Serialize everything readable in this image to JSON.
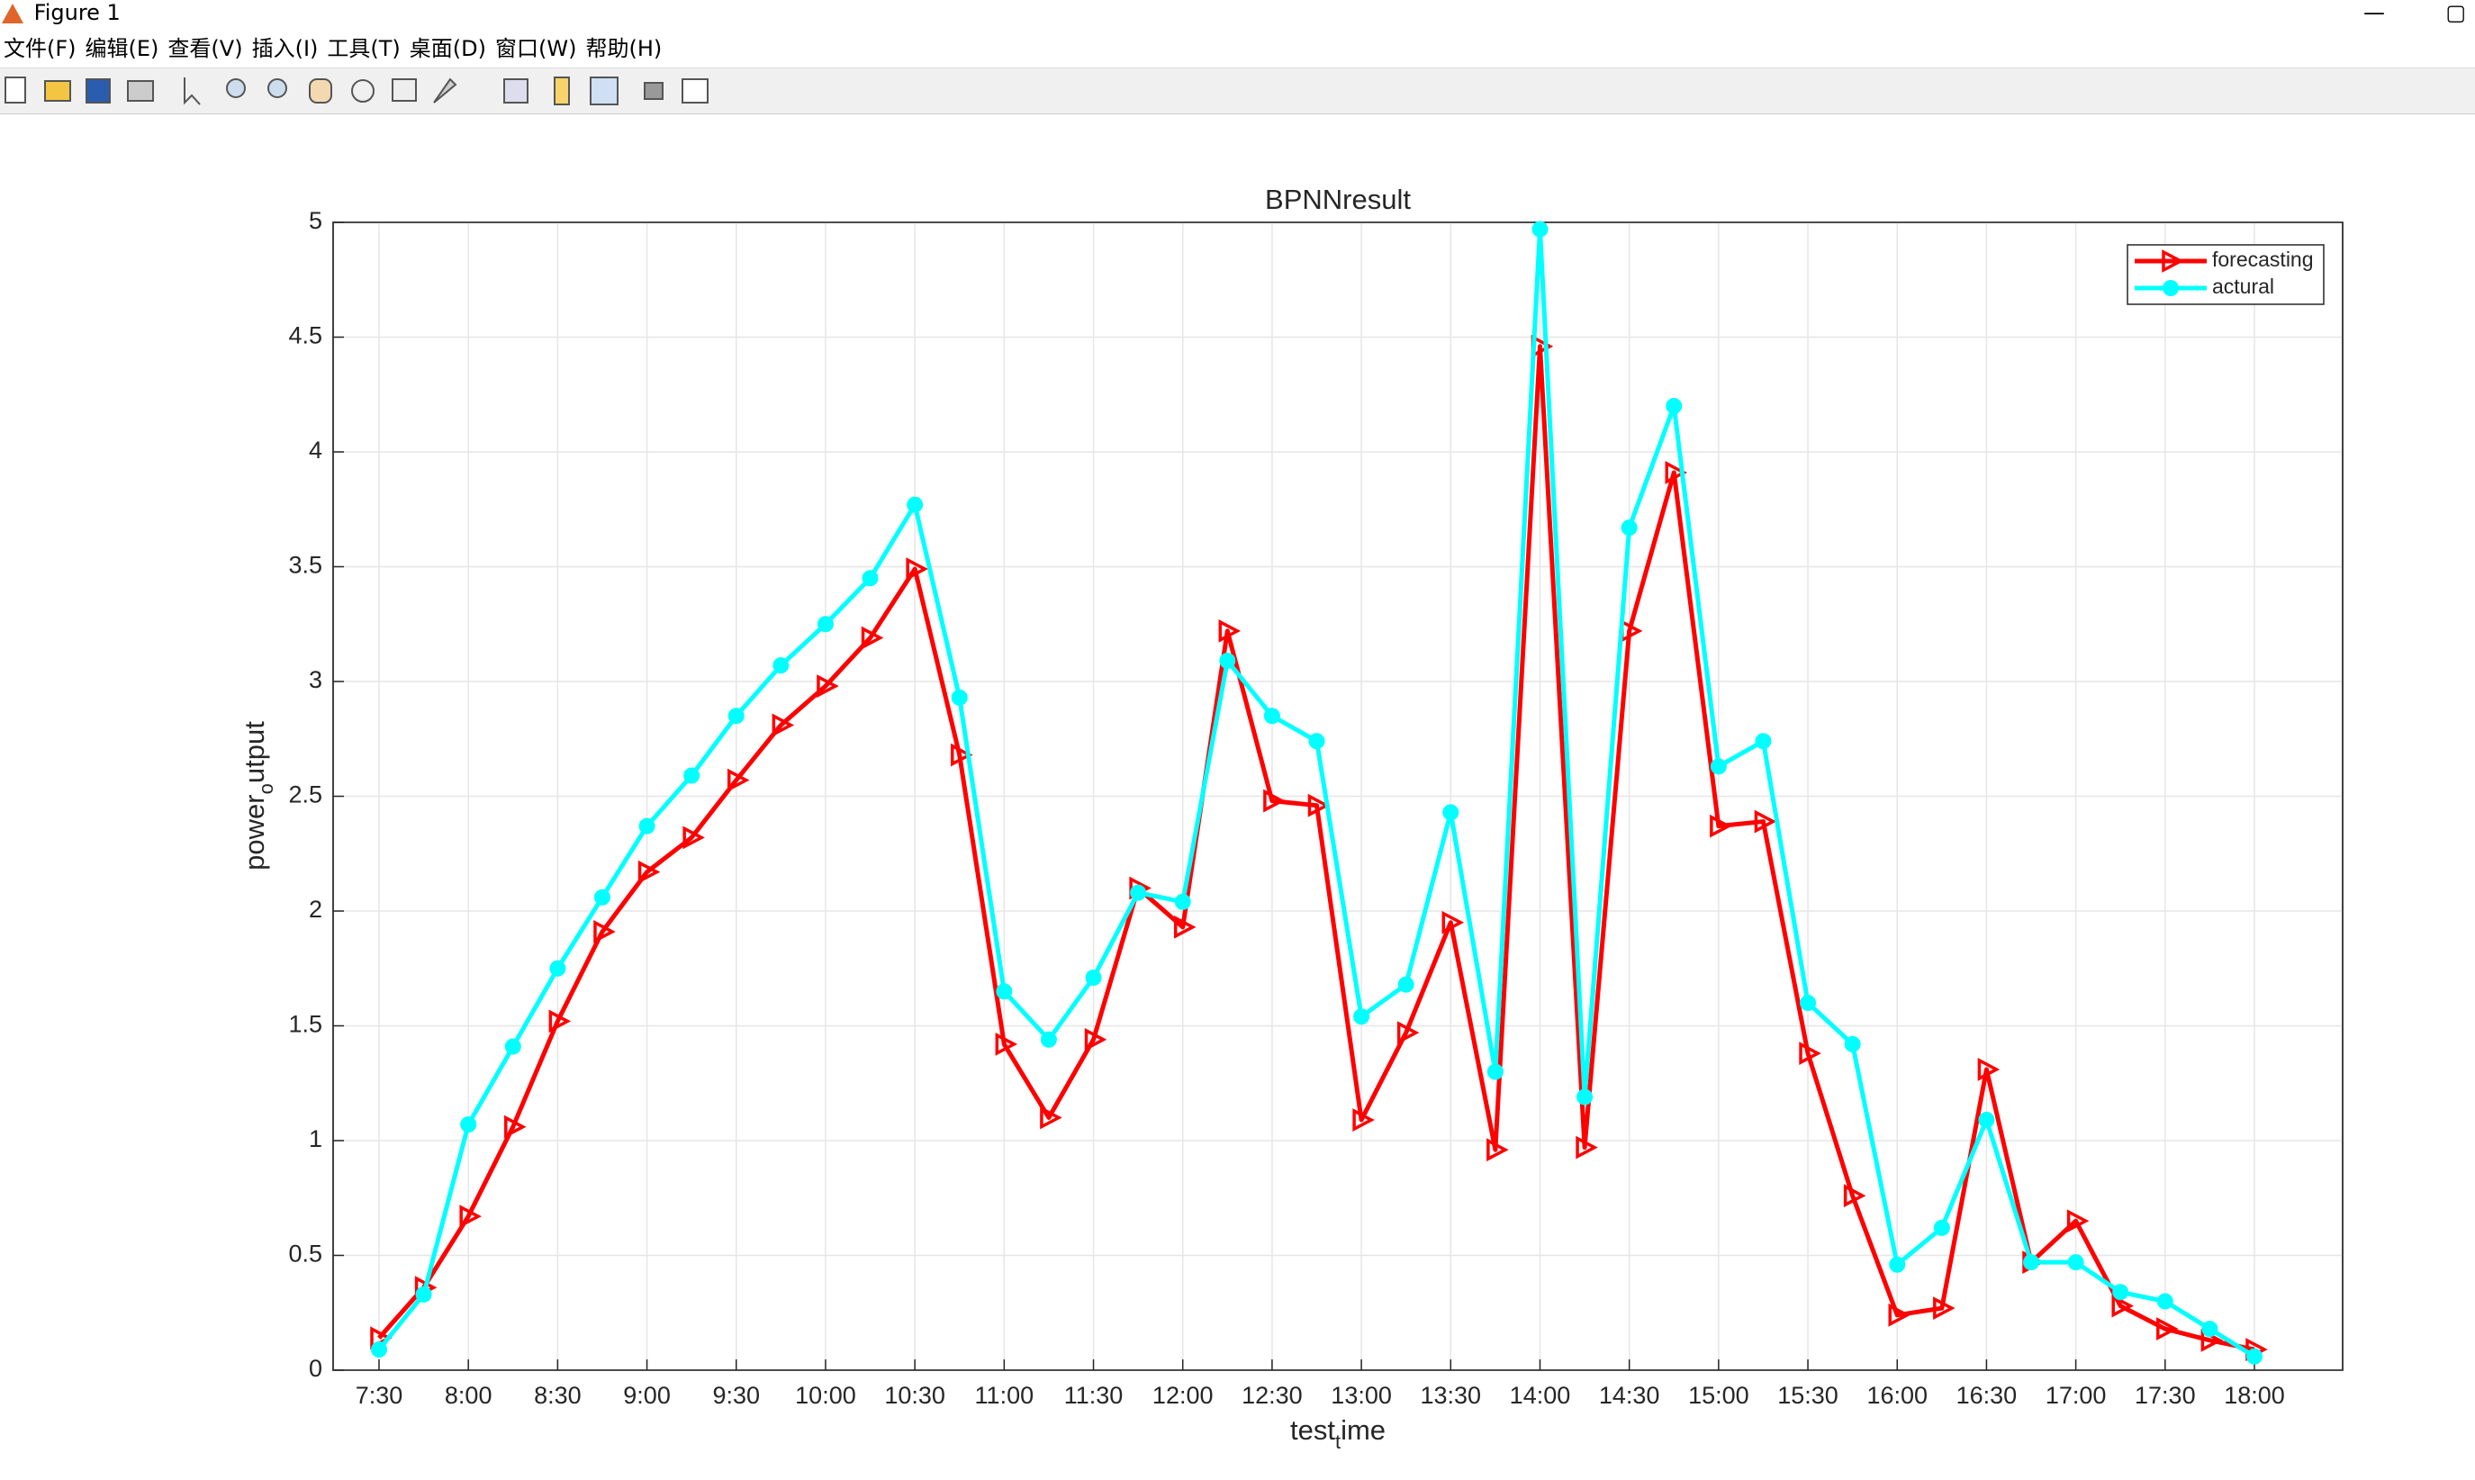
{
  "window": {
    "title": "Figure 1",
    "menu": [
      "文件(F)",
      "编辑(E)",
      "查看(V)",
      "插入(I)",
      "工具(T)",
      "桌面(D)",
      "窗口(W)",
      "帮助(H)"
    ]
  },
  "chart_data": {
    "type": "line",
    "title": "BPNNresult",
    "x_label": "test_time",
    "y_label": "power_output",
    "categories": [
      "7:30",
      null,
      "8:00",
      null,
      "8:30",
      null,
      "9:00",
      null,
      "9:30",
      null,
      "10:00",
      null,
      "10:30",
      null,
      "11:00",
      null,
      "11:30",
      null,
      "12:00",
      null,
      "12:30",
      null,
      "13:00",
      null,
      "13:30",
      null,
      "14:00",
      null,
      "14:30",
      null,
      "15:00",
      null,
      "15:30",
      null,
      "16:00",
      null,
      "16:30",
      null,
      "17:00",
      null,
      "17:30",
      null,
      "18:00"
    ],
    "series": [
      {
        "name": "forecasting",
        "color": "#ff0000",
        "marker": "triangle",
        "values": [
          0.14,
          0.36,
          0.67,
          1.06,
          1.52,
          1.91,
          2.17,
          2.32,
          2.57,
          2.81,
          2.98,
          3.19,
          3.49,
          2.68,
          1.42,
          1.1,
          1.44,
          2.1,
          1.93,
          3.22,
          2.48,
          2.46,
          1.09,
          1.47,
          1.95,
          0.96,
          4.46,
          0.97,
          3.22,
          3.91,
          2.37,
          2.39,
          1.38,
          0.76,
          0.24,
          0.27,
          1.31,
          0.47,
          0.65,
          0.28,
          0.18,
          0.13,
          0.09
        ]
      },
      {
        "name": "actural",
        "color": "#00ffff",
        "marker": "star",
        "values": [
          0.09,
          0.33,
          1.07,
          1.41,
          1.75,
          2.06,
          2.37,
          2.59,
          2.85,
          3.07,
          3.25,
          3.45,
          3.77,
          2.93,
          1.65,
          1.44,
          1.71,
          2.08,
          2.04,
          3.09,
          2.85,
          2.74,
          1.54,
          1.68,
          2.43,
          1.3,
          4.97,
          1.19,
          3.67,
          4.2,
          2.63,
          2.74,
          1.6,
          1.42,
          0.46,
          0.62,
          1.09,
          0.47,
          0.47,
          0.34,
          0.3,
          0.18,
          0.06
        ]
      }
    ],
    "ylim": [
      0,
      5
    ],
    "yticks": [
      0,
      0.5,
      1,
      1.5,
      2,
      2.5,
      3,
      3.5,
      4,
      4.5,
      5
    ],
    "grid": true,
    "legend": "upper right"
  }
}
